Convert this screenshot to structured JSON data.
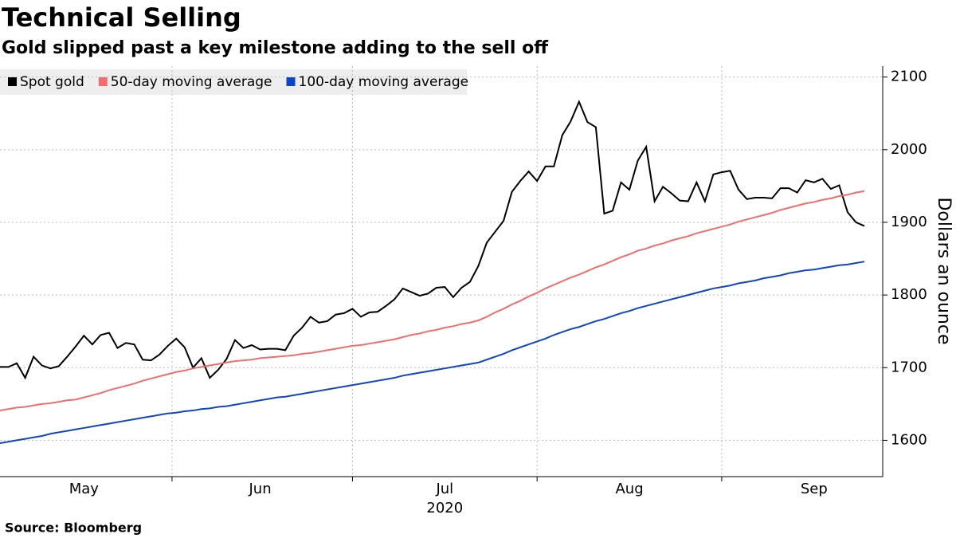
{
  "chart_data": {
    "type": "line",
    "title": "Technical Selling",
    "subtitle": "Gold slipped past a key milestone adding to the sell off",
    "source": "Source: Bloomberg",
    "y_axis_label": "Dollars an ounce",
    "x_year_label": "2020",
    "categories": [
      null,
      null,
      null,
      null,
      null,
      null,
      null,
      null,
      null,
      null,
      "May",
      null,
      null,
      null,
      null,
      null,
      null,
      null,
      null,
      null,
      null,
      null,
      null,
      null,
      null,
      null,
      null,
      null,
      null,
      null,
      null,
      "Jun",
      null,
      null,
      null,
      null,
      null,
      null,
      null,
      null,
      null,
      null,
      null,
      null,
      null,
      null,
      null,
      null,
      null,
      null,
      null,
      null,
      null,
      "Jul",
      null,
      null,
      null,
      null,
      null,
      null,
      null,
      null,
      null,
      null,
      null,
      null,
      null,
      null,
      null,
      null,
      null,
      null,
      null,
      null,
      null,
      "Aug",
      null,
      null,
      null,
      null,
      null,
      null,
      null,
      null,
      null,
      null,
      null,
      null,
      null,
      null,
      null,
      null,
      null,
      null,
      null,
      null,
      null,
      "Sep",
      null,
      null,
      null,
      null,
      null,
      null
    ],
    "series": [
      {
        "name": "Spot gold",
        "color": "#000000",
        "values": [
          1701,
          1701,
          1706,
          1686,
          1715,
          1703,
          1699,
          1702,
          1715,
          1729,
          1744,
          1732,
          1745,
          1748,
          1727,
          1734,
          1732,
          1711,
          1710,
          1718,
          1730,
          1740,
          1728,
          1700,
          1713,
          1686,
          1697,
          1712,
          1738,
          1727,
          1731,
          1725,
          1726,
          1726,
          1724,
          1744,
          1755,
          1770,
          1762,
          1764,
          1773,
          1775,
          1781,
          1770,
          1776,
          1777,
          1785,
          1794,
          1809,
          1804,
          1799,
          1802,
          1810,
          1811,
          1797,
          1810,
          1818,
          1840,
          1872,
          1887,
          1902,
          1942,
          1957,
          1970,
          1957,
          1977,
          1977,
          2020,
          2039,
          2066,
          2038,
          2031,
          1912,
          1916,
          1955,
          1945,
          1985,
          2004,
          1929,
          1949,
          1940,
          1930,
          1929,
          1955,
          1929,
          1966,
          1969,
          1971,
          1945,
          1932,
          1934,
          1934,
          1933,
          1947,
          1947,
          1941,
          1958,
          1955,
          1960,
          1946,
          1951,
          1914,
          1900,
          1895
        ]
      },
      {
        "name": "50-day moving average",
        "color": "#f26d6d",
        "values": [
          1641,
          1643,
          1645,
          1646,
          1648,
          1650,
          1651,
          1653,
          1655,
          1656,
          1659,
          1662,
          1665,
          1669,
          1672,
          1675,
          1678,
          1682,
          1685,
          1688,
          1691,
          1694,
          1696,
          1699,
          1701,
          1703,
          1705,
          1707,
          1709,
          1710,
          1711,
          1713,
          1714,
          1715,
          1716,
          1717,
          1719,
          1720,
          1722,
          1724,
          1726,
          1728,
          1730,
          1731,
          1733,
          1735,
          1737,
          1739,
          1742,
          1745,
          1747,
          1750,
          1752,
          1755,
          1757,
          1760,
          1762,
          1765,
          1770,
          1776,
          1781,
          1787,
          1792,
          1798,
          1803,
          1809,
          1814,
          1819,
          1824,
          1828,
          1833,
          1838,
          1842,
          1847,
          1852,
          1856,
          1861,
          1864,
          1868,
          1871,
          1875,
          1878,
          1881,
          1885,
          1888,
          1891,
          1894,
          1897,
          1901,
          1904,
          1907,
          1910,
          1913,
          1917,
          1920,
          1923,
          1926,
          1928,
          1931,
          1933,
          1936,
          1938,
          1941,
          1943
        ]
      },
      {
        "name": "100-day moving average",
        "color": "#1045c6",
        "values": [
          1596,
          1598,
          1600,
          1602,
          1604,
          1606,
          1609,
          1611,
          1613,
          1615,
          1617,
          1619,
          1621,
          1623,
          1625,
          1627,
          1629,
          1631,
          1633,
          1635,
          1637,
          1638,
          1640,
          1641,
          1643,
          1644,
          1646,
          1647,
          1649,
          1651,
          1653,
          1655,
          1657,
          1659,
          1660,
          1662,
          1664,
          1666,
          1668,
          1670,
          1672,
          1674,
          1676,
          1678,
          1680,
          1682,
          1684,
          1686,
          1689,
          1691,
          1693,
          1695,
          1697,
          1699,
          1701,
          1703,
          1705,
          1707,
          1711,
          1715,
          1719,
          1724,
          1728,
          1732,
          1736,
          1740,
          1745,
          1749,
          1753,
          1756,
          1760,
          1764,
          1767,
          1771,
          1775,
          1778,
          1782,
          1785,
          1788,
          1791,
          1794,
          1797,
          1800,
          1803,
          1806,
          1809,
          1811,
          1813,
          1816,
          1818,
          1820,
          1823,
          1825,
          1827,
          1830,
          1832,
          1834,
          1835,
          1837,
          1839,
          1841,
          1842,
          1844,
          1846
        ]
      }
    ],
    "ylim": [
      1550,
      2115
    ],
    "yticks": [
      1600,
      1700,
      1800,
      1900,
      2000,
      2100
    ],
    "grid": true
  }
}
